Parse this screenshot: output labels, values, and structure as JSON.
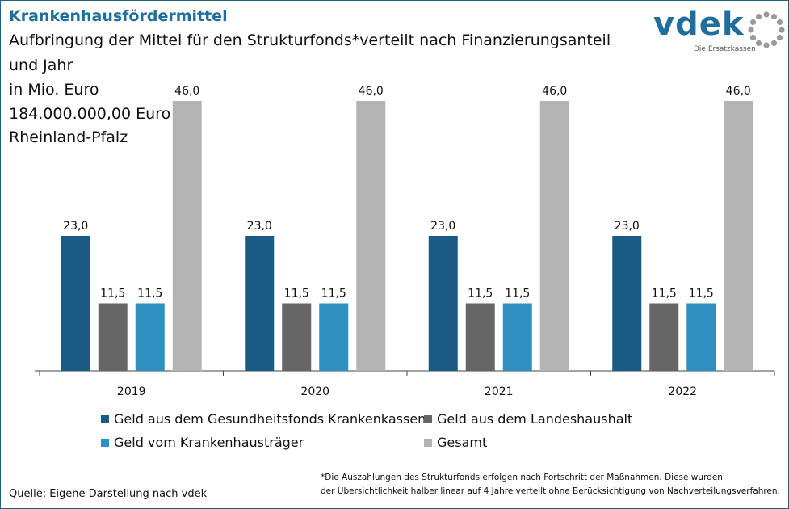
{
  "header": {
    "title": "Krankenhausfördermittel",
    "subtitle_line1": "Aufbringung der Mittel für den Strukturfonds*verteilt nach Finanzierungsanteil",
    "subtitle_line2": "und Jahr",
    "subtitle_line3": "in Mio. Euro",
    "subtitle_line4": "184.000.000,00 Euro",
    "subtitle_line5": "Rheinland-Pfalz"
  },
  "logo": {
    "text": "vdek",
    "tagline": "Die Ersatzkassen",
    "icon": "dotted-ring-icon"
  },
  "chart_data": {
    "type": "bar",
    "categories": [
      "2019",
      "2020",
      "2021",
      "2022"
    ],
    "series": [
      {
        "name": "Geld aus dem Gesundheitsfonds Krankenkassen",
        "color": "#1b5a82",
        "values": [
          23.0,
          23.0,
          23.0,
          23.0
        ],
        "labels": [
          "23,0",
          "23,0",
          "23,0",
          "23,0"
        ]
      },
      {
        "name": "Geld aus dem Landeshaushalt",
        "color": "#666666",
        "values": [
          11.5,
          11.5,
          11.5,
          11.5
        ],
        "labels": [
          "11,5",
          "11,5",
          "11,5",
          "11,5"
        ]
      },
      {
        "name": "Geld vom Krankenhausträger",
        "color": "#2f8fc0",
        "values": [
          11.5,
          11.5,
          11.5,
          11.5
        ],
        "labels": [
          "11,5",
          "11,5",
          "11,5",
          "11,5"
        ]
      },
      {
        "name": "Gesamt",
        "color": "#b4b4b4",
        "values": [
          46.0,
          46.0,
          46.0,
          46.0
        ],
        "labels": [
          "46,0",
          "46,0",
          "46,0",
          "46,0"
        ]
      }
    ],
    "ylim": [
      0,
      46
    ],
    "grid": false,
    "legend_position": "bottom"
  },
  "footnote": {
    "line1": "*Die Auszahlungen des Strukturfonds erfolgen nach Fortschritt der Maßnahmen. Diese wurden",
    "line2": "der Übersichtlichkeit halber linear auf 4 Jahre verteilt ohne Berücksichtigung von Nachverteilungsverfahren."
  },
  "source": "Quelle: Eigene Darstellung nach vdek"
}
